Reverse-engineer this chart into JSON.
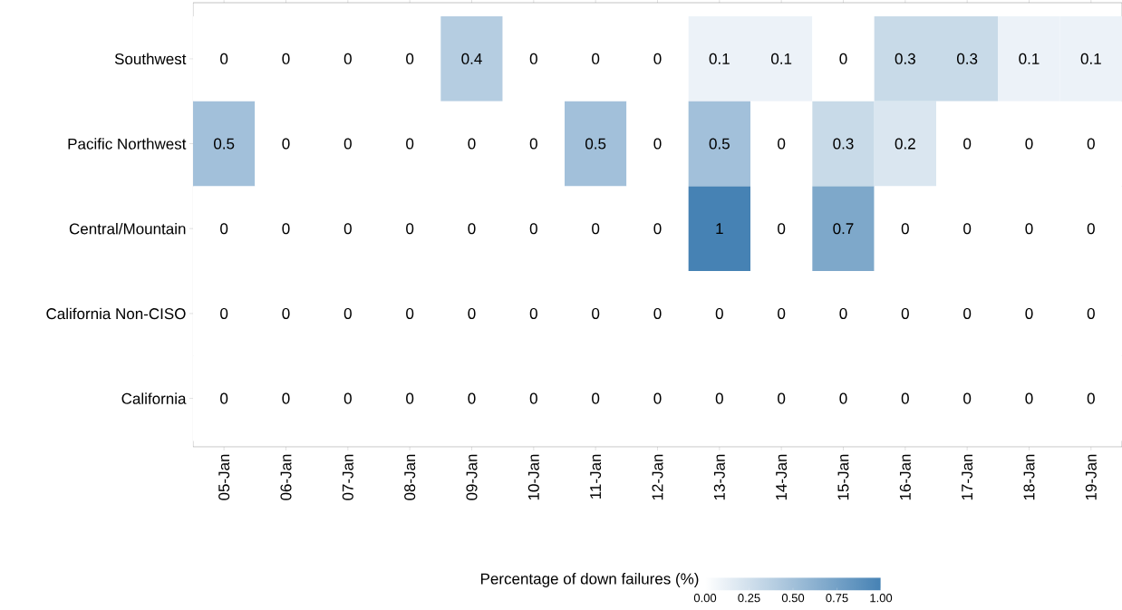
{
  "chart_data": {
    "type": "heatmap",
    "categories": [
      "05-Jan",
      "06-Jan",
      "07-Jan",
      "08-Jan",
      "09-Jan",
      "10-Jan",
      "11-Jan",
      "12-Jan",
      "13-Jan",
      "14-Jan",
      "15-Jan",
      "16-Jan",
      "17-Jan",
      "18-Jan",
      "19-Jan"
    ],
    "y_categories": [
      "Southwest",
      "Pacific Northwest",
      "Central/Mountain",
      "California Non-CISO",
      "California"
    ],
    "cells": [
      [
        0,
        0,
        0,
        0,
        0.4,
        0,
        0,
        0,
        0.1,
        0.1,
        0,
        0.3,
        0.3,
        0.1,
        0.1
      ],
      [
        0.5,
        0,
        0,
        0,
        0,
        0,
        0.5,
        0,
        0.5,
        0,
        0.3,
        0.2,
        0,
        0,
        0
      ],
      [
        0,
        0,
        0,
        0,
        0,
        0,
        0,
        0,
        1,
        0,
        0.7,
        0,
        0,
        0,
        0
      ],
      [
        0,
        0,
        0,
        0,
        0,
        0,
        0,
        0,
        0,
        0,
        0,
        0,
        0,
        0,
        0
      ],
      [
        0,
        0,
        0,
        0,
        0,
        0,
        0,
        0,
        0,
        0,
        0,
        0,
        0,
        0,
        0
      ]
    ],
    "data_labels": true,
    "clabel": "Percentage of down failures (%)",
    "clim": [
      0,
      1
    ],
    "cticks": [
      {
        "value": 0,
        "label": "0.00"
      },
      {
        "value": 0.25,
        "label": "0.25"
      },
      {
        "value": 0.5,
        "label": "0.50"
      },
      {
        "value": 0.75,
        "label": "0.75"
      },
      {
        "value": 1,
        "label": "1.00"
      }
    ]
  }
}
